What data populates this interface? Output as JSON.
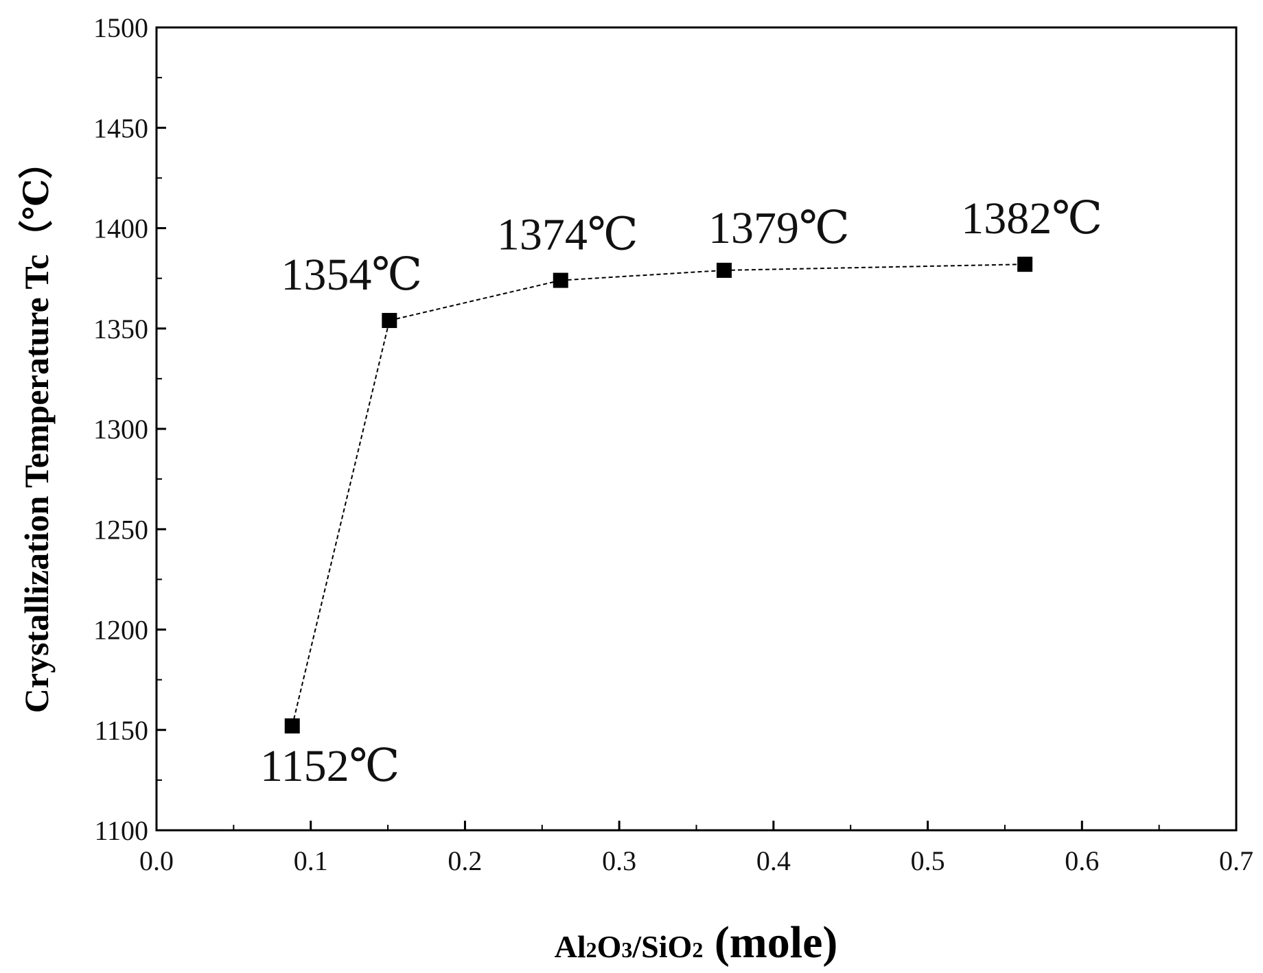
{
  "chart_data": {
    "type": "line",
    "x": [
      0.088,
      0.151,
      0.262,
      0.368,
      0.563
    ],
    "y": [
      1152,
      1354,
      1374,
      1379,
      1382
    ],
    "point_labels": [
      "1152℃",
      "1354℃",
      "1374℃",
      "1379℃",
      "1382℃"
    ],
    "xlabel_parts": [
      "Al",
      "2",
      "O",
      "3",
      "/SiO",
      "2"
    ],
    "xlabel_suffix": " (mole)",
    "ylabel": "Crystallization Temperature Tc（℃）",
    "xlim": [
      0.0,
      0.7
    ],
    "ylim": [
      1100,
      1500
    ],
    "xticks": [
      "0.0",
      "0.1",
      "0.2",
      "0.3",
      "0.4",
      "0.5",
      "0.6",
      "0.7"
    ],
    "yticks": [
      "1100",
      "1150",
      "1200",
      "1250",
      "1300",
      "1350",
      "1400",
      "1450",
      "1500"
    ],
    "marker": "square",
    "line_style": "dashed",
    "grid": false,
    "colors": {
      "series": "#000000"
    }
  }
}
